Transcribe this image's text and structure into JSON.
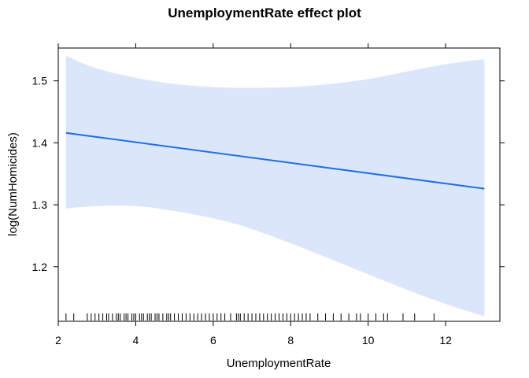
{
  "chart_data": {
    "type": "line",
    "title": "UnemploymentRate effect plot",
    "xlabel": "UnemploymentRate",
    "ylabel": "log(NumHomicides)",
    "xlim": [
      2.0,
      13.4
    ],
    "ylim": [
      1.112,
      1.553
    ],
    "x_ticks": [
      2,
      4,
      6,
      8,
      10,
      12
    ],
    "x_tick_labels": [
      "2",
      "4",
      "6",
      "8",
      "10",
      "12"
    ],
    "y_ticks": [
      1.2,
      1.3,
      1.4,
      1.5
    ],
    "y_tick_labels": [
      "1.2",
      "1.3",
      "1.4",
      "1.5"
    ],
    "grid": false,
    "colors": {
      "line": "#1E6FE6",
      "band": "#DCE6FB",
      "rug": "#000000"
    },
    "series": [
      {
        "x": [
          2.2,
          13.0
        ],
        "y": [
          1.416,
          1.326
        ]
      }
    ],
    "confidence_band": {
      "x": [
        2.2,
        3.0,
        4.0,
        5.0,
        6.0,
        6.8,
        8.0,
        9.0,
        10.0,
        11.0,
        12.0,
        13.0
      ],
      "upper": [
        1.54,
        1.52,
        1.505,
        1.495,
        1.49,
        1.489,
        1.49,
        1.495,
        1.503,
        1.515,
        1.527,
        1.535
      ],
      "lower": [
        1.294,
        1.298,
        1.298,
        1.29,
        1.278,
        1.265,
        1.238,
        1.213,
        1.188,
        1.163,
        1.14,
        1.12
      ]
    },
    "rug": [
      2.2,
      2.4,
      2.75,
      2.85,
      2.95,
      3.05,
      3.15,
      3.25,
      3.3,
      3.4,
      3.5,
      3.55,
      3.6,
      3.7,
      3.75,
      3.8,
      3.9,
      3.95,
      4.0,
      4.1,
      4.15,
      4.2,
      4.3,
      4.35,
      4.4,
      4.5,
      4.55,
      4.6,
      4.7,
      4.8,
      4.85,
      4.9,
      5.0,
      5.1,
      5.2,
      5.3,
      5.4,
      5.5,
      5.6,
      5.7,
      5.8,
      5.9,
      6.0,
      6.1,
      6.2,
      6.3,
      6.45,
      6.6,
      6.65,
      6.7,
      6.8,
      6.9,
      7.0,
      7.1,
      7.2,
      7.3,
      7.4,
      7.5,
      7.6,
      7.7,
      7.8,
      7.9,
      8.0,
      8.1,
      8.2,
      8.3,
      8.4,
      8.5,
      8.7,
      8.9,
      9.1,
      9.3,
      9.5,
      9.7,
      9.8,
      10.0,
      10.2,
      10.4,
      10.5,
      10.9,
      11.2,
      11.7
    ]
  }
}
